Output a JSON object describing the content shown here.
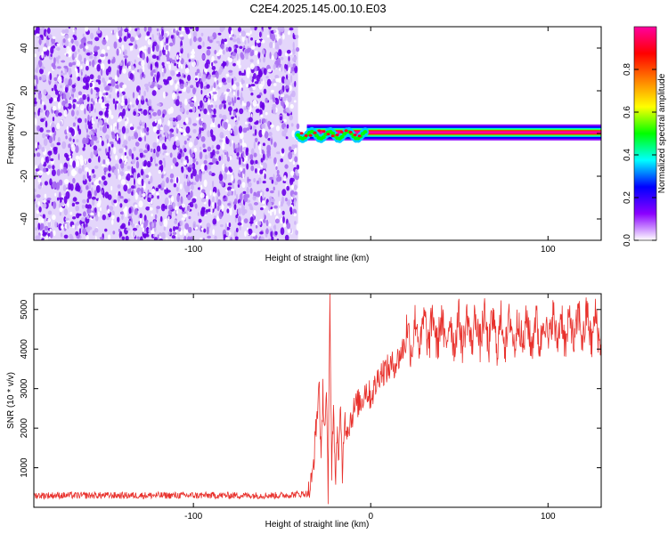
{
  "figure": {
    "title": "C2E4.2025.145.00.10.E03"
  },
  "chart_data": [
    {
      "type": "heatmap",
      "xlabel": "Height of straight line (km)",
      "ylabel": "Frequency (Hz)",
      "xlim": [
        -190,
        130
      ],
      "ylim": [
        -50,
        50
      ],
      "xticks": [
        -100,
        0,
        100
      ],
      "xtick_labels": [
        "-100",
        "",
        "100"
      ],
      "yticks": [
        -40,
        -20,
        0,
        20,
        40
      ],
      "ytick_labels": [
        "-40",
        "-20",
        "0",
        "20",
        "40"
      ],
      "noise_region": {
        "x_range": [
          -190,
          -41
        ],
        "y_range": [
          -50,
          50
        ],
        "typical_amplitude": 0.1
      },
      "signal_line": {
        "x_start": -41,
        "x_end": 130,
        "frequency_hz": 0.5,
        "peak_amplitude": 1.0
      },
      "colorbar": {
        "label": "Normalized spectral amplitude",
        "range": [
          0,
          1
        ],
        "ticks": [
          0.0,
          0.2,
          0.4,
          0.6,
          0.8
        ],
        "tick_labels": [
          "0.0",
          "0.2",
          "0.4",
          "0.6",
          "0.8"
        ],
        "colors": [
          "#ffffff",
          "#8a00ff",
          "#0000ff",
          "#00ffff",
          "#00ff00",
          "#ffff00",
          "#ff8000",
          "#ff0000",
          "#ff00a0"
        ]
      },
      "grid": false
    },
    {
      "type": "line",
      "xlabel": "Height of straight line (km)",
      "ylabel": "SNR (10 * v/v)",
      "xlim": [
        -190,
        130
      ],
      "ylim": [
        0,
        5400
      ],
      "xticks": [
        -100,
        0,
        100
      ],
      "xtick_labels": [
        "-100",
        "0",
        "100"
      ],
      "yticks": [
        1000,
        2000,
        3000,
        4000,
        5000
      ],
      "ytick_labels": [
        "1000",
        "2000",
        "3000",
        "4000",
        "5000"
      ],
      "series": [
        {
          "color": "#e8312c",
          "x": [
            -190,
            -150,
            -100,
            -50,
            -35,
            -33,
            -30,
            -29,
            -28,
            -27,
            -26,
            -25,
            -24,
            -23,
            -22,
            -21,
            -20,
            -19,
            -18,
            -17,
            -16,
            -15,
            -13,
            -10,
            -8,
            -5,
            -3,
            0,
            3,
            5,
            10,
            15,
            20,
            25,
            30,
            35,
            40,
            50,
            60,
            70,
            80,
            90,
            100,
            105,
            110,
            115,
            120,
            125,
            130
          ],
          "y": [
            300,
            300,
            300,
            300,
            350,
            700,
            2500,
            3200,
            900,
            3000,
            2000,
            2800,
            300,
            5300,
            1000,
            2600,
            500,
            2000,
            1200,
            2400,
            800,
            2200,
            2000,
            2400,
            2600,
            2700,
            3000,
            2800,
            3100,
            3400,
            3500,
            3700,
            4200,
            4400,
            4400,
            4500,
            4400,
            4450,
            4500,
            4400,
            4450,
            4400,
            4500,
            4550,
            4450,
            4500,
            4600,
            4500,
            4450
          ],
          "noise_amplitude": 250
        }
      ],
      "grid": false
    }
  ]
}
